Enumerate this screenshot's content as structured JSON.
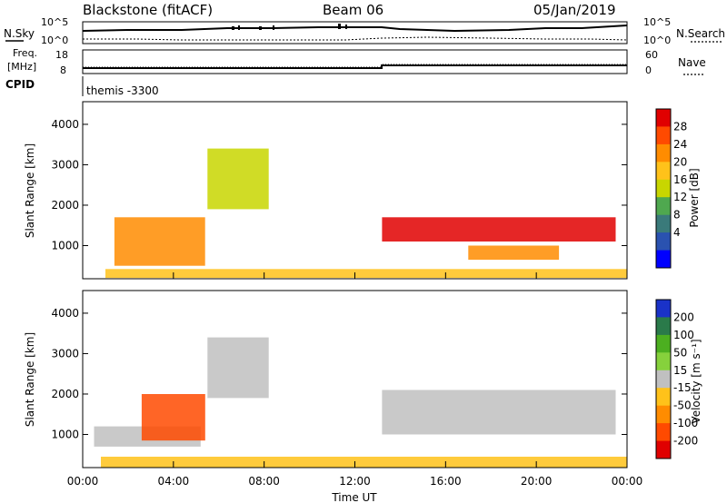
{
  "header": {
    "station": "Blackstone (fitACF)",
    "beam": "Beam 06",
    "date": "05/Jan/2019"
  },
  "top_panels": {
    "nsky_label": "N.Sky",
    "nsearch_label": "N.Search",
    "nsky_ticks": [
      "10^5",
      "10^0"
    ],
    "nsearch_ticks": [
      "10^5",
      "10^0"
    ],
    "freq_label": "Freq.",
    "freq_unit": "[MHz]",
    "freq_ticks": [
      "18",
      "8"
    ],
    "nave_label": "Nave",
    "nave_ticks": [
      "60",
      "0"
    ],
    "cpid_label": "CPID",
    "cpid_text": "themis -3300"
  },
  "power_colorbar": {
    "label": "Power [dB]",
    "ticks": [
      "28",
      "24",
      "20",
      "16",
      "12",
      "8",
      "4"
    ],
    "colors": [
      "#e00000",
      "#ff4a00",
      "#ff8c00",
      "#ffc21a",
      "#c8d600",
      "#4fa84f",
      "#3a7a7a",
      "#2a52b0",
      "#0000ff"
    ]
  },
  "velocity_colorbar": {
    "label": "Velocity [m s⁻¹]",
    "ticks": [
      "200",
      "100",
      "50",
      "15",
      "-15",
      "-50",
      "-100",
      "-200"
    ],
    "colors": [
      "#1a32c8",
      "#2a7a4a",
      "#4caf20",
      "#86d13c",
      "#c0c0c0",
      "#ffc21a",
      "#ff8c00",
      "#ff4a00",
      "#e00000"
    ]
  },
  "chart_data": [
    {
      "type": "heatmap",
      "title": "Power",
      "xlabel": "",
      "ylabel": "Slant Range [km]",
      "x_range_hours": [
        0,
        24
      ],
      "ylim": [
        180,
        4560
      ],
      "yticks": [
        1000,
        2000,
        3000,
        4000
      ],
      "regions": [
        {
          "name": "near-range low layer",
          "t_start": 1.0,
          "t_end": 24.0,
          "range_km": [
            200,
            420
          ],
          "value_db": 16
        },
        {
          "name": "early rising arc",
          "t_start": 1.4,
          "t_end": 5.4,
          "range_km": [
            500,
            1700
          ],
          "value_db": 20
        },
        {
          "name": "04-08 UT V-shaped echo",
          "t_start": 5.5,
          "t_end": 8.2,
          "range_km": [
            1900,
            3400
          ],
          "value_db": 14
        },
        {
          "name": "main band",
          "t_start": 13.2,
          "t_end": 23.5,
          "range_km": [
            1100,
            1700
          ],
          "value_db": 28
        },
        {
          "name": "lower band",
          "t_start": 17.0,
          "t_end": 21.0,
          "range_km": [
            650,
            1000
          ],
          "value_db": 22
        }
      ]
    },
    {
      "type": "heatmap",
      "title": "Velocity",
      "xlabel": "Time UT",
      "ylabel": "Slant Range [km]",
      "x_range_hours": [
        0,
        24
      ],
      "xtick_labels": [
        "00:00",
        "04:00",
        "08:00",
        "12:00",
        "16:00",
        "20:00",
        "00:00"
      ],
      "ylim": [
        180,
        4560
      ],
      "yticks": [
        1000,
        2000,
        3000,
        4000
      ],
      "regions": [
        {
          "name": "near-range low layer",
          "t_start": 0.8,
          "t_end": 24.0,
          "range_km": [
            180,
            450
          ],
          "velocity": -40
        },
        {
          "name": "early ground band",
          "t_start": 0.5,
          "t_end": 5.2,
          "range_km": [
            700,
            1200
          ],
          "velocity": 0
        },
        {
          "name": "early negative arc",
          "t_start": 2.6,
          "t_end": 5.4,
          "range_km": [
            850,
            2000
          ],
          "velocity": -150
        },
        {
          "name": "04-08 UT V-shaped echo",
          "t_start": 5.5,
          "t_end": 8.2,
          "range_km": [
            1900,
            3400
          ],
          "velocity": 0
        },
        {
          "name": "main band",
          "t_start": 13.2,
          "t_end": 23.5,
          "range_km": [
            1000,
            2100
          ],
          "velocity": 0
        }
      ]
    }
  ]
}
